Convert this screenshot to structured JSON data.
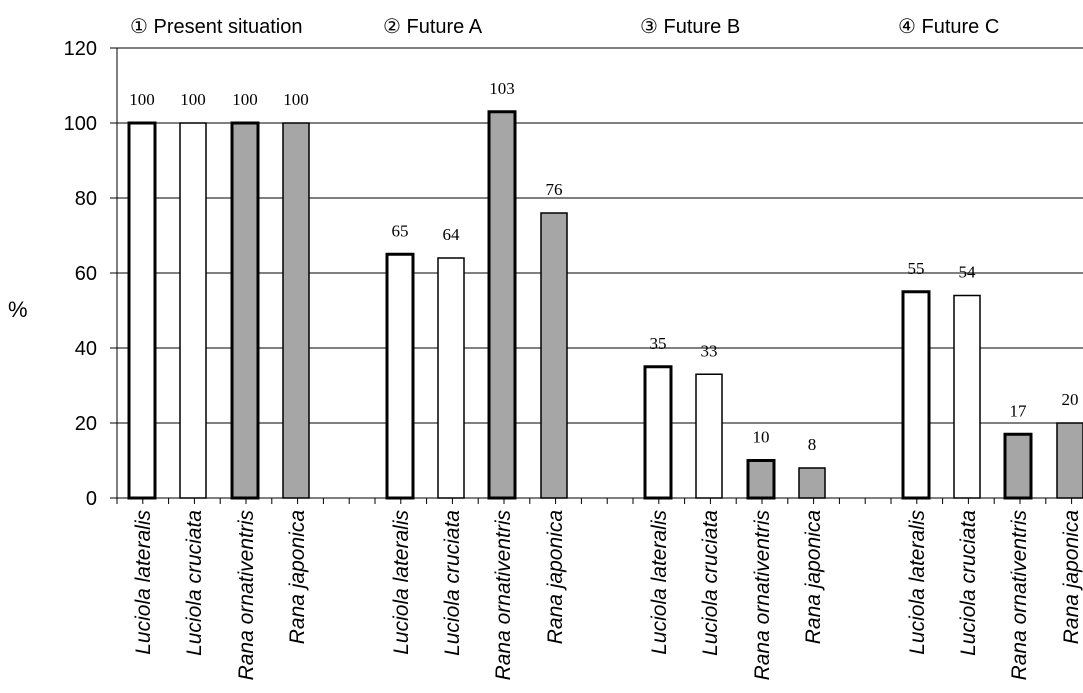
{
  "chart_data": {
    "type": "bar",
    "ylabel": "%",
    "ylim": [
      0,
      120
    ],
    "yticks": [
      "0",
      "20",
      "40",
      "60",
      "80",
      "100",
      "120"
    ],
    "grid": true,
    "groups": [
      {
        "label": "① Present situation",
        "values": [
          100,
          100,
          100,
          100
        ],
        "value_labels": [
          "100",
          "100",
          "100",
          "100"
        ]
      },
      {
        "label": "② Future A",
        "values": [
          65,
          64,
          103,
          76
        ],
        "value_labels": [
          "65",
          "64",
          "103",
          "76"
        ]
      },
      {
        "label": "③ Future B",
        "values": [
          35,
          33,
          10,
          8
        ],
        "value_labels": [
          "35",
          "33",
          "10",
          "8"
        ]
      },
      {
        "label": "④ Future C",
        "values": [
          55,
          54,
          17,
          20
        ],
        "value_labels": [
          "55",
          "54",
          "17",
          "20"
        ]
      }
    ],
    "categories": [
      "Luciola lateralis",
      "Luciola cruciata",
      "Rana ornativentris",
      "Rana japonica"
    ],
    "category_colors": [
      "#ffffff",
      "#ffffff",
      "#a6a6a6",
      "#a6a6a6"
    ],
    "category_border_heavy": [
      true,
      false,
      true,
      false
    ],
    "bar_border_color": "#000000"
  }
}
